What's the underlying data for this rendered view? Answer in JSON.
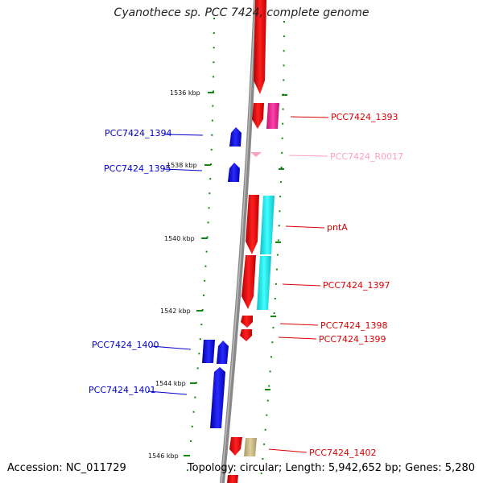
{
  "title": "Cyanothece sp. PCC 7424, complete genome",
  "footer": {
    "accession": "Accession: NC_011729",
    "topology": "Topology: circular; Length: 5,942,652 bp; Genes: 5,280"
  },
  "scale": {
    "ticks": [
      "1536 kbp",
      "1538 kbp",
      "1540 kbp",
      "1542 kbp",
      "1544 kbp",
      "1546 kbp"
    ]
  },
  "colors": {
    "forward_cds": "#ee0000",
    "reverse_cds": "#0000ee",
    "rna": "#ffa0c0",
    "pink_feature": "#ee3399",
    "cyan_feature": "#22e6ee",
    "olive_feature": "#c8bb88",
    "backbone": "#888888",
    "tick": "#118811"
  },
  "genes": [
    {
      "name": "PCC7424_1393",
      "strand": "+"
    },
    {
      "name": "PCC7424_1394",
      "strand": "-"
    },
    {
      "name": "PCC7424_R0017",
      "strand": "+"
    },
    {
      "name": "PCC7424_1395",
      "strand": "-"
    },
    {
      "name": "pntA",
      "strand": "+"
    },
    {
      "name": "PCC7424_1397",
      "strand": "+"
    },
    {
      "name": "PCC7424_1398",
      "strand": "+"
    },
    {
      "name": "PCC7424_1399",
      "strand": "+"
    },
    {
      "name": "PCC7424_1400",
      "strand": "-"
    },
    {
      "name": "PCC7424_1401",
      "strand": "-"
    },
    {
      "name": "PCC7424_1402",
      "strand": "+"
    }
  ]
}
